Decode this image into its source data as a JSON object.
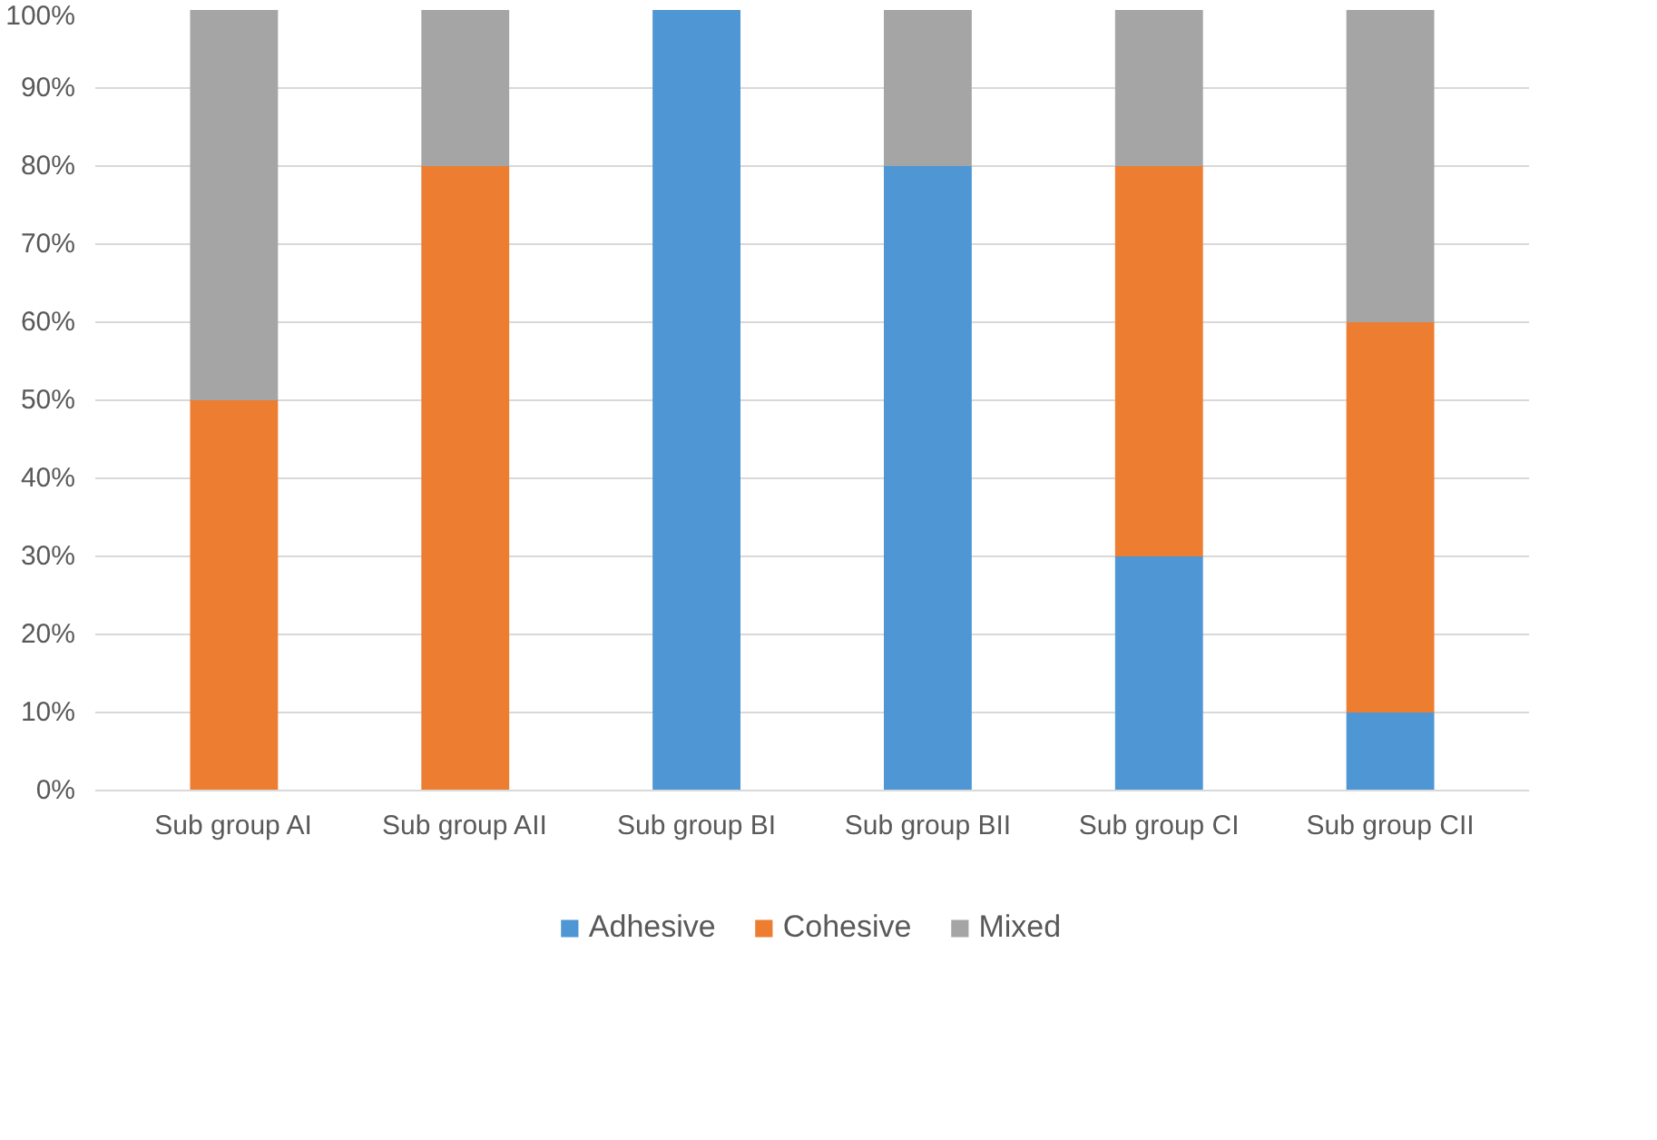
{
  "chart_data": {
    "type": "bar",
    "stacked": true,
    "categories": [
      "Sub group AI",
      "Sub group AII",
      "Sub group BI",
      "Sub group BII",
      "Sub group CI",
      "Sub group CII"
    ],
    "series": [
      {
        "name": "Adhesive",
        "color": "#4e96d4",
        "values": [
          0,
          0,
          100,
          80,
          30,
          10
        ]
      },
      {
        "name": "Cohesive",
        "color": "#ed7d31",
        "values": [
          50,
          80,
          0,
          0,
          50,
          50
        ]
      },
      {
        "name": "Mixed",
        "color": "#a5a5a5",
        "values": [
          50,
          20,
          0,
          20,
          20,
          40
        ]
      }
    ],
    "ylim": [
      0,
      100
    ],
    "yticks": [
      {
        "value": 0,
        "label": "0%"
      },
      {
        "value": 10,
        "label": "10%"
      },
      {
        "value": 20,
        "label": "20%"
      },
      {
        "value": 30,
        "label": "30%"
      },
      {
        "value": 40,
        "label": "40%"
      },
      {
        "value": 50,
        "label": "50%"
      },
      {
        "value": 60,
        "label": "60%"
      },
      {
        "value": 70,
        "label": "70%"
      },
      {
        "value": 80,
        "label": "80%"
      },
      {
        "value": 90,
        "label": "90%"
      },
      {
        "value": 100,
        "label": "100%"
      }
    ],
    "grid": "y",
    "legend": "bottom"
  }
}
